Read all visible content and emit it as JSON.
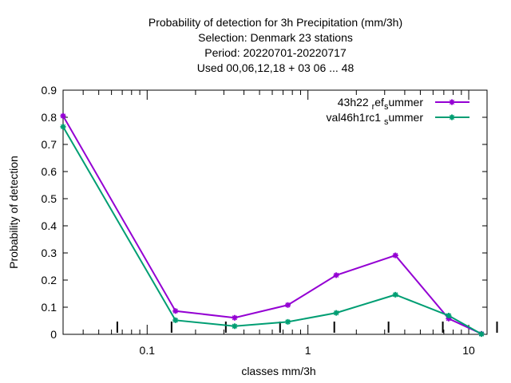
{
  "chart_data": {
    "type": "line",
    "title": [
      "Probability of detection  for 3h Precipitation (mm/3h)",
      "Selection: Denmark     23 stations",
      "Period: 20220701-20220717",
      "Used  00,06,12,18  + 03 06 ... 48"
    ],
    "xlabel": "classes mm/3h",
    "ylabel": "Probability of detection",
    "x_scale": "log",
    "xlim": [
      0.03,
      13
    ],
    "ylim": [
      0,
      0.9
    ],
    "x_ticks": [
      0.1,
      1,
      10
    ],
    "x_tick_labels": [
      "0.1",
      "1",
      "10"
    ],
    "y_ticks": [
      0,
      0.1,
      0.2,
      0.3,
      0.4,
      0.5,
      0.6,
      0.7,
      0.8,
      0.9
    ],
    "y_tick_labels": [
      "0",
      "0.1",
      "0.2",
      "0.3",
      "0.4",
      "0.5",
      "0.6",
      "0.7",
      "0.8",
      "0.9"
    ],
    "grid": false,
    "legend_position": "top-right",
    "series": [
      {
        "name": "43h22 ref summer",
        "legend_label": {
          "prefix": "43h22 ",
          "sub1": "r",
          "mid": "ef",
          "sub2": "s",
          "suffix": "ummer"
        },
        "color": "#9400d3",
        "x": [
          0.03,
          0.15,
          0.35,
          0.75,
          1.5,
          3.5,
          7.5,
          12
        ],
        "values": [
          0.805,
          0.086,
          0.061,
          0.108,
          0.218,
          0.291,
          0.058,
          0.002
        ]
      },
      {
        "name": "val46h1rc1 summer",
        "legend_label": {
          "prefix": "val46h1rc1 ",
          "sub1": "",
          "mid": "",
          "sub2": "s",
          "suffix": "ummer"
        },
        "color": "#009e73",
        "x": [
          0.03,
          0.15,
          0.35,
          0.75,
          1.5,
          3.5,
          7.5,
          12
        ],
        "values": [
          0.765,
          0.052,
          0.03,
          0.046,
          0.079,
          0.146,
          0.069,
          0.001
        ]
      }
    ]
  }
}
